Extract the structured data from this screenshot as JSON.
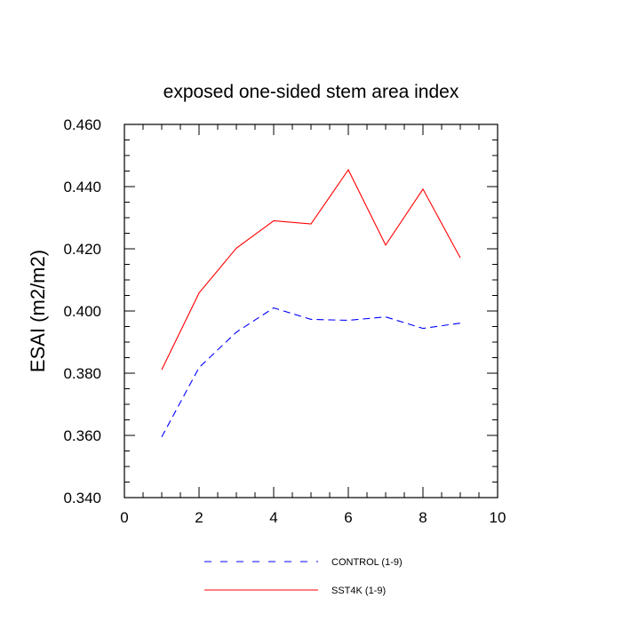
{
  "chart_data": {
    "type": "line",
    "title": "exposed one-sided stem area index",
    "xlabel": "",
    "ylabel": "ESAI  (m2/m2)",
    "xlim": [
      0,
      10
    ],
    "ylim": [
      0.34,
      0.46
    ],
    "x_ticks": [
      "0",
      "2",
      "4",
      "6",
      "8",
      "10"
    ],
    "y_ticks": [
      "0.340",
      "0.360",
      "0.380",
      "0.400",
      "0.420",
      "0.440",
      "0.460"
    ],
    "grid": false,
    "legend_position": "bottom",
    "series": [
      {
        "name": "CONTROL (1-9)",
        "color": "#0000ff",
        "style": "dashed",
        "x": [
          1,
          2,
          3,
          4,
          5,
          6,
          7,
          8,
          9
        ],
        "y": [
          0.3595,
          0.3818,
          0.3932,
          0.401,
          0.3973,
          0.397,
          0.3981,
          0.3944,
          0.3961
        ]
      },
      {
        "name": "SST4K (1-9)",
        "color": "#ff0000",
        "style": "solid",
        "x": [
          1,
          2,
          3,
          4,
          5,
          6,
          7,
          8,
          9
        ],
        "y": [
          0.3811,
          0.4058,
          0.4202,
          0.429,
          0.428,
          0.4454,
          0.4212,
          0.4392,
          0.4171
        ]
      }
    ]
  }
}
